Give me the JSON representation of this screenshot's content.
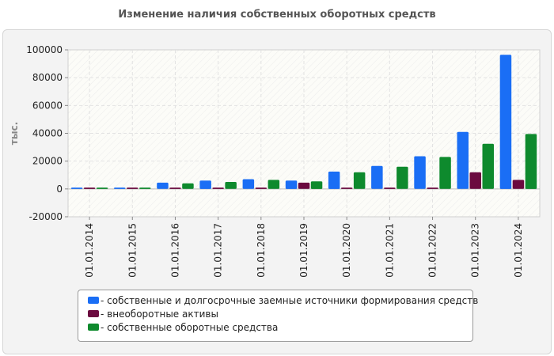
{
  "title": "Изменение наличия собственных оборотных средств",
  "chart_data": {
    "type": "bar",
    "title": "Изменение наличия собственных оборотных средств",
    "ylabel": "тыс.",
    "xlabel": "",
    "ylim": [
      -20000,
      100000
    ],
    "yticks": [
      -20000,
      0,
      20000,
      40000,
      60000,
      80000,
      100000
    ],
    "ytick_labels": [
      "-20000",
      "0",
      "20000",
      "40000",
      "60000",
      "80000",
      "100000"
    ],
    "grid": true,
    "legend_position": "bottom",
    "categories": [
      "01.01.2014",
      "01.01.2015",
      "01.01.2016",
      "01.01.2017",
      "01.01.2018",
      "01.01.2019",
      "01.01.2020",
      "01.01.2021",
      "01.01.2022",
      "01.01.2023",
      "01.01.2024"
    ],
    "series": [
      {
        "name": "- собственные и долгосрочные заемные источники формирования средств",
        "color": "#1a6ef5",
        "values": [
          1000,
          1000,
          4500,
          6000,
          7000,
          6000,
          12500,
          16500,
          23500,
          41000,
          96500
        ]
      },
      {
        "name": "- внеоборотные активы",
        "color": "#6b0a3f",
        "values": [
          1000,
          1000,
          1000,
          1000,
          1000,
          4500,
          1000,
          1000,
          1000,
          12000,
          6500
        ]
      },
      {
        "name": "- собственные оборотные средства",
        "color": "#0e8a2d",
        "values": [
          1000,
          1000,
          4000,
          5000,
          6500,
          5500,
          12000,
          16000,
          23000,
          32500,
          39500
        ]
      }
    ]
  }
}
